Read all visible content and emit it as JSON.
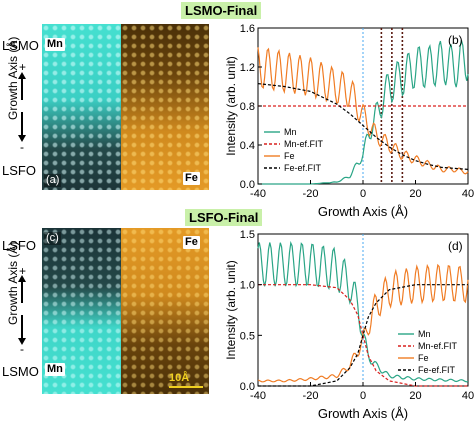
{
  "headers": {
    "top": "LSMO-Final",
    "bottom": "LSFO-Final"
  },
  "images": [
    {
      "top_label": "LSMO",
      "bottom_label": "LSFO",
      "axis_label": "Growth Axis (Å)",
      "plus": "+",
      "minus": "-",
      "panel": "(a)",
      "left_tag": "Mn",
      "right_tag": "Fe"
    },
    {
      "top_label": "LSFO",
      "bottom_label": "LSMO",
      "axis_label": "Growth Axis (Å)",
      "plus": "+",
      "minus": "-",
      "panel": "(c)",
      "left_tag": "Mn",
      "right_tag": "Fe",
      "scale_bar": "10Å"
    }
  ],
  "colors": {
    "mn": "#2aa586",
    "fe": "#f07c24",
    "fit": "#000000",
    "fit_red": "#d9201f",
    "vline": "#4aa8f0"
  },
  "chart_data": [
    {
      "type": "line",
      "panel": "(b)",
      "xlabel": "Growth Axis (Å)",
      "ylabel": "Intensity (arb. unit)",
      "xlim": [
        -40,
        40
      ],
      "ylim": [
        0.0,
        1.6
      ],
      "xticks": [
        "-40",
        "-20",
        "0",
        "20",
        "40"
      ],
      "yticks": [
        "0.0",
        "0.4",
        "0.8",
        "1.2",
        "1.6"
      ],
      "legend": [
        "Mn",
        "Mn-ef.FIT",
        "Fe",
        "Fe-ef.FIT"
      ],
      "legend_position": "bottom-left",
      "dotted_lines_x": [
        0,
        7,
        11,
        15
      ],
      "series": [
        {
          "name": "Mn",
          "kind": "mn",
          "x": [
            -40,
            -30,
            -20,
            -10,
            -5,
            0,
            2,
            5,
            8,
            10,
            12,
            15,
            20,
            25,
            30,
            35,
            40
          ],
          "y": [
            0.0,
            0.0,
            0.0,
            0.02,
            0.08,
            0.3,
            0.5,
            0.7,
            0.9,
            1.0,
            1.05,
            1.1,
            1.2,
            1.2,
            1.25,
            1.2,
            1.3
          ]
        },
        {
          "name": "Mn-ef.FIT",
          "kind": "mn-fit",
          "x": [
            -40,
            0,
            5,
            10,
            15,
            40
          ],
          "y": [
            0.8,
            0.8,
            0.8,
            0.8,
            0.8,
            0.8
          ]
        },
        {
          "name": "Fe",
          "kind": "fe",
          "x": [
            -40,
            -30,
            -20,
            -10,
            -5,
            0,
            5,
            10,
            15,
            20,
            25,
            30,
            35,
            40
          ],
          "y": [
            1.2,
            1.15,
            1.1,
            1.0,
            0.95,
            0.7,
            0.5,
            0.4,
            0.3,
            0.25,
            0.2,
            0.15,
            0.15,
            0.12
          ]
        },
        {
          "name": "Fe-ef.FIT",
          "kind": "fe-fit",
          "x": [
            -40,
            -30,
            -20,
            -10,
            -5,
            0,
            5,
            10,
            15,
            20,
            25,
            30,
            35,
            40
          ],
          "y": [
            1.03,
            1.0,
            0.95,
            0.82,
            0.72,
            0.6,
            0.48,
            0.38,
            0.3,
            0.24,
            0.2,
            0.17,
            0.16,
            0.15
          ]
        }
      ]
    },
    {
      "type": "line",
      "panel": "(d)",
      "xlabel": "Growth Axis (Å)",
      "ylabel": "Intensity (arb. unit)",
      "xlim": [
        -40,
        40
      ],
      "ylim": [
        0.0,
        1.5
      ],
      "xticks": [
        "-40",
        "-20",
        "0",
        "20",
        "40"
      ],
      "yticks": [
        "0.0",
        "0.5",
        "1.0",
        "1.5"
      ],
      "legend": [
        "Mn",
        "Mn-ef.FIT",
        "Fe",
        "Fe-ef.FIT"
      ],
      "legend_position": "bottom-right",
      "dotted_lines_x": [
        0
      ],
      "series": [
        {
          "name": "Mn",
          "kind": "mn",
          "x": [
            -40,
            -30,
            -20,
            -10,
            -5,
            -2,
            0,
            2,
            5,
            10,
            20,
            30,
            40
          ],
          "y": [
            1.2,
            1.2,
            1.2,
            1.15,
            1.0,
            0.8,
            0.5,
            0.3,
            0.2,
            0.1,
            0.07,
            0.06,
            0.05
          ]
        },
        {
          "name": "Mn-ef.FIT",
          "kind": "mn-fit",
          "x": [
            -40,
            -20,
            -10,
            -5,
            -2,
            0,
            2,
            5,
            10,
            20,
            40
          ],
          "y": [
            1.0,
            1.0,
            0.97,
            0.85,
            0.7,
            0.5,
            0.3,
            0.15,
            0.05,
            0.0,
            0.0
          ]
        },
        {
          "name": "Fe",
          "kind": "fe",
          "x": [
            -40,
            -30,
            -20,
            -10,
            -5,
            0,
            2,
            5,
            10,
            20,
            30,
            40
          ],
          "y": [
            0.05,
            0.05,
            0.07,
            0.1,
            0.2,
            0.45,
            0.6,
            0.8,
            0.95,
            1.0,
            1.02,
            1.0
          ]
        },
        {
          "name": "Fe-ef.FIT",
          "kind": "fe-fit",
          "x": [
            -40,
            -20,
            -10,
            -5,
            -2,
            0,
            2,
            5,
            10,
            20,
            40
          ],
          "y": [
            0.0,
            0.0,
            0.05,
            0.18,
            0.32,
            0.5,
            0.68,
            0.82,
            0.95,
            1.0,
            1.0
          ]
        }
      ]
    }
  ]
}
